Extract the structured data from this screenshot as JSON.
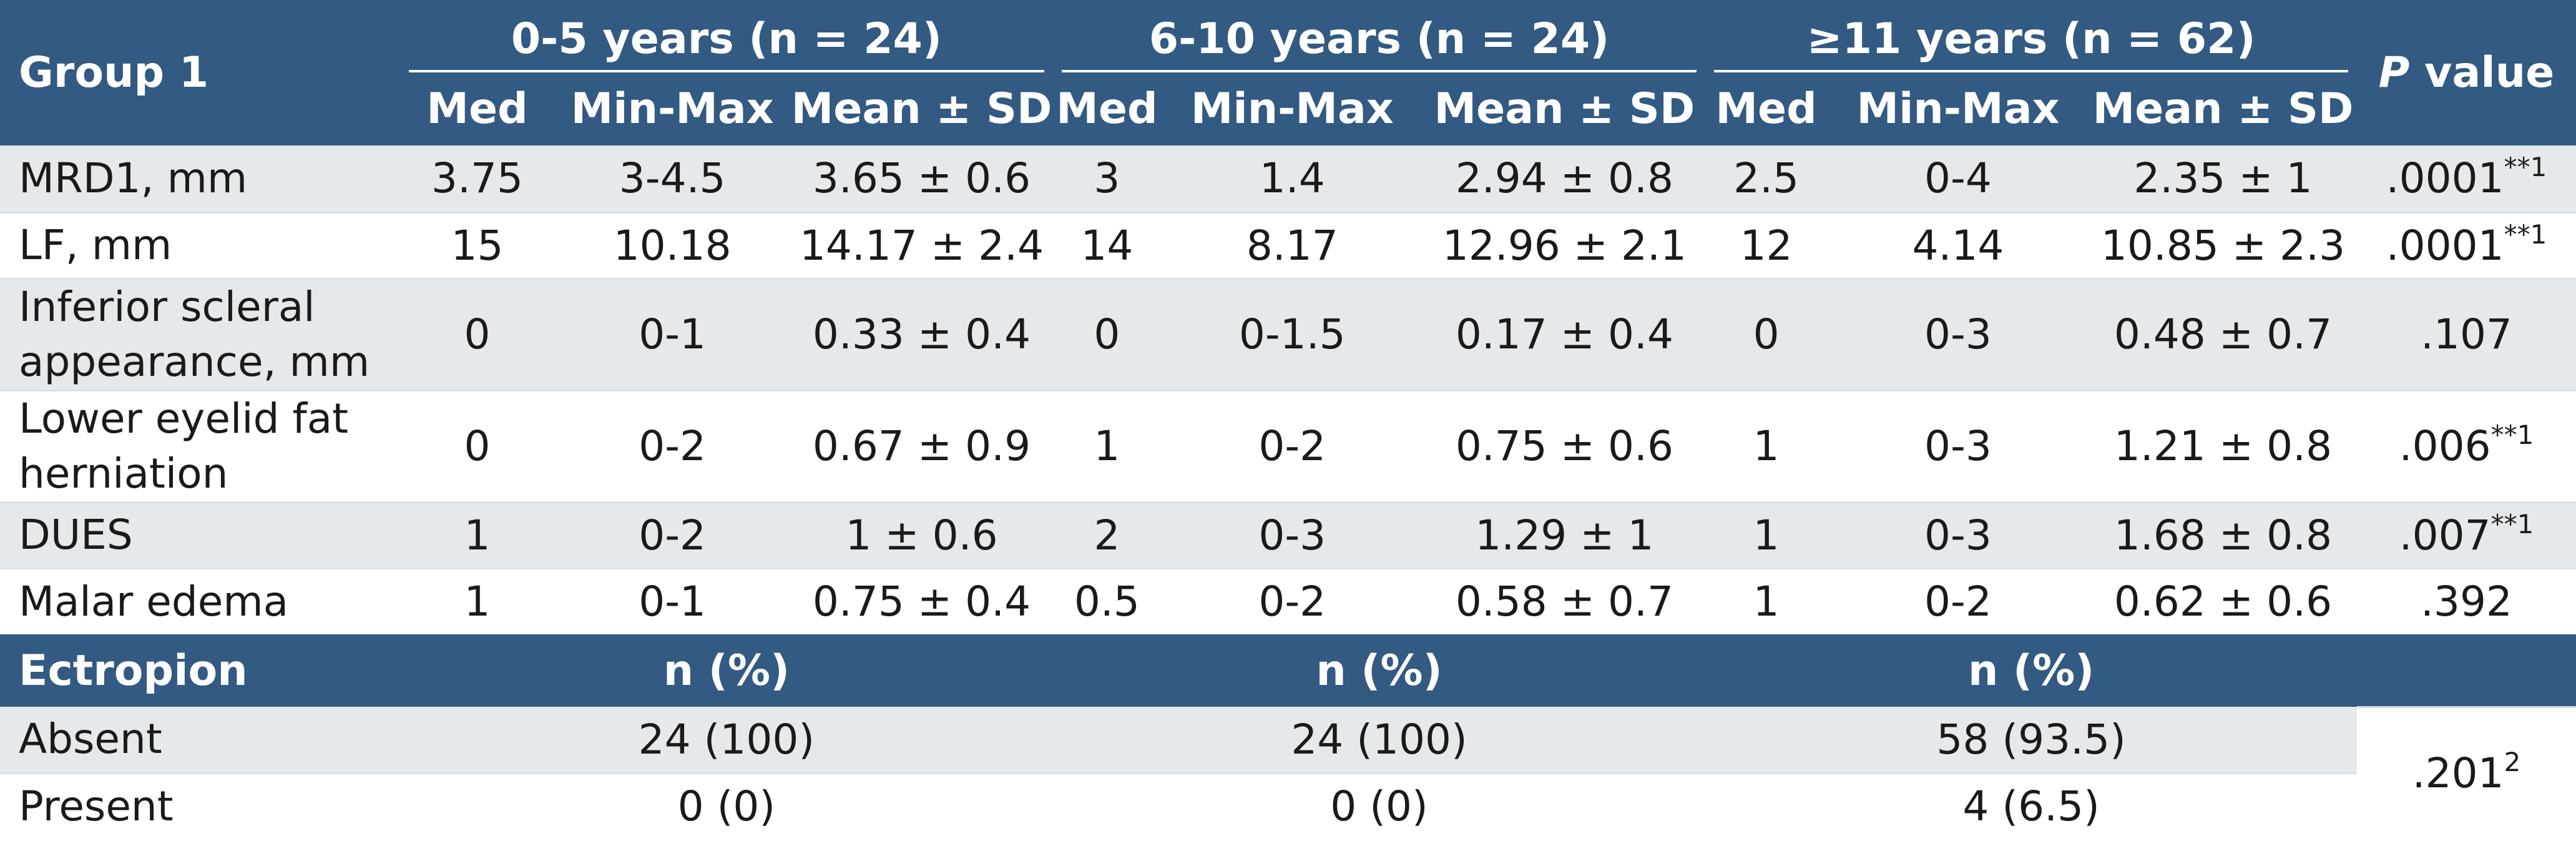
{
  "header": {
    "group_label": "Group 1",
    "age_groups": [
      "0-5 years (n = 24)",
      "6-10 years (n = 24)",
      "≥11 years (n = 62)"
    ],
    "p_value_italic": "P",
    "p_value_rest": " value",
    "sub_columns": [
      "Med",
      "Min-Max",
      "Mean ± SD"
    ]
  },
  "rows": [
    {
      "label": "MRD1, mm",
      "cells": [
        "3.75",
        "3-4.5",
        "3.65 ± 0.6",
        "3",
        "1.4",
        "2.94 ± 0.8",
        "2.5",
        "0-4",
        "2.35 ± 1"
      ],
      "p": ".0001",
      "p_sup": "**1"
    },
    {
      "label": "LF, mm",
      "cells": [
        "15",
        "10.18",
        "14.17 ± 2.4",
        "14",
        "8.17",
        "12.96 ± 2.1",
        "12",
        "4.14",
        "10.85 ± 2.3"
      ],
      "p": ".0001",
      "p_sup": "**1"
    },
    {
      "label": "Inferior scleral appearance, mm",
      "cells": [
        "0",
        "0-1",
        "0.33 ± 0.4",
        "0",
        "0-1.5",
        "0.17 ± 0.4",
        "0",
        "0-3",
        "0.48 ± 0.7"
      ],
      "p": ".107",
      "p_sup": ""
    },
    {
      "label": "Lower eyelid fat herniation",
      "cells": [
        "0",
        "0-2",
        "0.67 ± 0.9",
        "1",
        "0-2",
        "0.75 ± 0.6",
        "1",
        "0-3",
        "1.21 ± 0.8"
      ],
      "p": ".006",
      "p_sup": "**1"
    },
    {
      "label": "DUES",
      "cells": [
        "1",
        "0-2",
        "1 ± 0.6",
        "2",
        "0-3",
        "1.29 ± 1",
        "1",
        "0-3",
        "1.68 ± 0.8"
      ],
      "p": ".007",
      "p_sup": "**1"
    },
    {
      "label": "Malar edema",
      "cells": [
        "1",
        "0-1",
        "0.75 ± 0.4",
        "0.5",
        "0-2",
        "0.58 ± 0.7",
        "1",
        "0-2",
        "0.62 ± 0.6"
      ],
      "p": ".392",
      "p_sup": ""
    }
  ],
  "ectropion": {
    "label": "Ectropion",
    "col_header": [
      "n (%)",
      "n (%)",
      "n (%)"
    ],
    "rows": [
      {
        "label": "Absent",
        "cells": [
          "24 (100)",
          "24 (100)",
          "58 (93.5)"
        ]
      },
      {
        "label": "Present",
        "cells": [
          "0 (0)",
          "0 (0)",
          "4 (6.5)"
        ]
      }
    ],
    "p": ".201",
    "p_sup": "2"
  }
}
